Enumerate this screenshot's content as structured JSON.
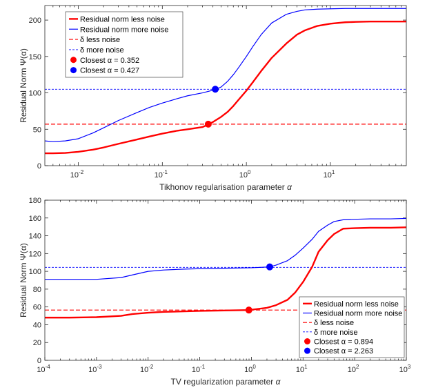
{
  "colors": {
    "red": "#ff0000",
    "blue": "#0000ff",
    "axis": "#262626"
  },
  "chart_data": [
    {
      "type": "line",
      "xscale": "log",
      "xlim": [
        0.004,
        80
      ],
      "ylim": [
        0,
        220
      ],
      "xlabel_prefix": "Tikhonov regularisation parameter ",
      "ylabel_prefix": "Residual Norm ",
      "symbol_alpha": "α",
      "symbol_psi": "Ψ(α)",
      "xticks": [
        {
          "value": 0.01,
          "base": "10",
          "exp": "-2"
        },
        {
          "value": 0.1,
          "base": "10",
          "exp": "-1"
        },
        {
          "value": 1,
          "base": "10",
          "exp": "0"
        },
        {
          "value": 10,
          "base": "10",
          "exp": "1"
        }
      ],
      "yticks": [
        {
          "value": 0,
          "label": "0"
        },
        {
          "value": 50,
          "label": "50"
        },
        {
          "value": 100,
          "label": "100"
        },
        {
          "value": 150,
          "label": "150"
        },
        {
          "value": 200,
          "label": "200"
        }
      ],
      "legend_position": "top-left",
      "series": [
        {
          "name": "Residual norm less noise",
          "color": "#ff0000",
          "width": 2.4,
          "dash": "",
          "x": [
            0.004,
            0.005,
            0.007,
            0.01,
            0.015,
            0.02,
            0.03,
            0.05,
            0.07,
            0.1,
            0.15,
            0.2,
            0.3,
            0.352,
            0.4,
            0.5,
            0.6,
            0.7,
            0.8,
            1,
            1.2,
            1.5,
            2,
            3,
            4,
            5,
            7,
            10,
            15,
            20,
            30,
            50,
            80
          ],
          "y": [
            17,
            17,
            17.5,
            19,
            22,
            25,
            30,
            36,
            40,
            44,
            48,
            50,
            53,
            56.5,
            60,
            67,
            74,
            82,
            90,
            103,
            115,
            130,
            148,
            168,
            180,
            186,
            192,
            195,
            197,
            197.5,
            198,
            198,
            198
          ]
        },
        {
          "name": "Residual norm more noise",
          "color": "#0000ff",
          "width": 1.2,
          "dash": "",
          "x": [
            0.004,
            0.005,
            0.007,
            0.01,
            0.015,
            0.02,
            0.03,
            0.05,
            0.07,
            0.1,
            0.15,
            0.2,
            0.3,
            0.427,
            0.5,
            0.6,
            0.7,
            0.8,
            1,
            1.2,
            1.5,
            2,
            3,
            4,
            5,
            7,
            10,
            15,
            20,
            30,
            50,
            80
          ],
          "y": [
            34,
            33,
            34,
            37,
            45,
            52,
            62,
            73,
            80,
            86,
            92,
            96,
            100,
            104.5,
            108,
            116,
            125,
            134,
            150,
            164,
            180,
            196,
            208,
            212,
            214,
            215,
            215.5,
            216,
            216,
            216,
            216,
            216
          ]
        },
        {
          "name": "δ less noise",
          "color": "#ff0000",
          "width": 1.2,
          "dash": "6 3",
          "x": [
            0.004,
            80
          ],
          "y": [
            57,
            57
          ]
        },
        {
          "name": "δ more noise",
          "color": "#0000ff",
          "width": 0.9,
          "dash": "3 2",
          "x": [
            0.004,
            80
          ],
          "y": [
            105,
            105
          ]
        }
      ],
      "markers": [
        {
          "name": "Closest α = 0.352",
          "color": "#ff0000",
          "x": 0.352,
          "y": 57
        },
        {
          "name": "Closest α = 0.427",
          "color": "#0000ff",
          "x": 0.427,
          "y": 105
        }
      ]
    },
    {
      "type": "line",
      "xscale": "log",
      "xlim": [
        0.0001,
        1000
      ],
      "ylim": [
        0,
        180
      ],
      "xlabel_prefix": "TV regularization parameter ",
      "ylabel_prefix": "Residual Norm ",
      "symbol_alpha": "α",
      "symbol_psi": "Ψ(α)",
      "xticks": [
        {
          "value": 0.0001,
          "base": "10",
          "exp": "-4"
        },
        {
          "value": 0.001,
          "base": "10",
          "exp": "-3"
        },
        {
          "value": 0.01,
          "base": "10",
          "exp": "-2"
        },
        {
          "value": 0.1,
          "base": "10",
          "exp": "-1"
        },
        {
          "value": 1,
          "base": "10",
          "exp": "0"
        },
        {
          "value": 10,
          "base": "10",
          "exp": "1"
        },
        {
          "value": 100,
          "base": "10",
          "exp": "2"
        },
        {
          "value": 1000,
          "base": "10",
          "exp": "3"
        }
      ],
      "yticks": [
        {
          "value": 0,
          "label": "0"
        },
        {
          "value": 20,
          "label": "20"
        },
        {
          "value": 40,
          "label": "40"
        },
        {
          "value": 60,
          "label": "60"
        },
        {
          "value": 80,
          "label": "80"
        },
        {
          "value": 100,
          "label": "100"
        },
        {
          "value": 120,
          "label": "120"
        },
        {
          "value": 140,
          "label": "140"
        },
        {
          "value": 160,
          "label": "160"
        },
        {
          "value": 180,
          "label": "180"
        }
      ],
      "legend_position": "bottom-right",
      "series": [
        {
          "name": "Residual norm less noise",
          "color": "#ff0000",
          "width": 2.4,
          "dash": "",
          "x": [
            0.0001,
            0.0003,
            0.001,
            0.003,
            0.005,
            0.01,
            0.02,
            0.05,
            0.1,
            0.3,
            0.894,
            2,
            3,
            5,
            7,
            10,
            15,
            20,
            30,
            40,
            60,
            100,
            200,
            500,
            1000
          ],
          "y": [
            48,
            48,
            48.5,
            50,
            52,
            53.5,
            54.5,
            55,
            55.5,
            56,
            56.5,
            59,
            62,
            68,
            76,
            88,
            105,
            122,
            135,
            142,
            148,
            148.5,
            149,
            149,
            149.5
          ]
        },
        {
          "name": "Residual norm more noise",
          "color": "#0000ff",
          "width": 1.2,
          "dash": "",
          "x": [
            0.0001,
            0.0003,
            0.001,
            0.003,
            0.005,
            0.01,
            0.02,
            0.05,
            0.1,
            0.3,
            1,
            2.263,
            3,
            5,
            7,
            10,
            15,
            20,
            30,
            40,
            60,
            100,
            200,
            500,
            1000
          ],
          "y": [
            91,
            91,
            91,
            93,
            96,
            100,
            101.5,
            102.5,
            103,
            103.5,
            104,
            105,
            107,
            112,
            118,
            126,
            136,
            145,
            152,
            156,
            158,
            158.5,
            159,
            159,
            159.5
          ]
        },
        {
          "name": "δ less noise",
          "color": "#ff0000",
          "width": 1.2,
          "dash": "6 3",
          "x": [
            0.0001,
            1000
          ],
          "y": [
            56.5,
            56.5
          ]
        },
        {
          "name": "δ more noise",
          "color": "#0000ff",
          "width": 0.9,
          "dash": "3 2",
          "x": [
            0.0001,
            1000
          ],
          "y": [
            104.5,
            104.5
          ]
        }
      ],
      "markers": [
        {
          "name": "Closest α = 0.894",
          "color": "#ff0000",
          "x": 0.894,
          "y": 56.5
        },
        {
          "name": "Closest α = 2.263",
          "color": "#0000ff",
          "x": 2.263,
          "y": 105
        }
      ]
    }
  ]
}
